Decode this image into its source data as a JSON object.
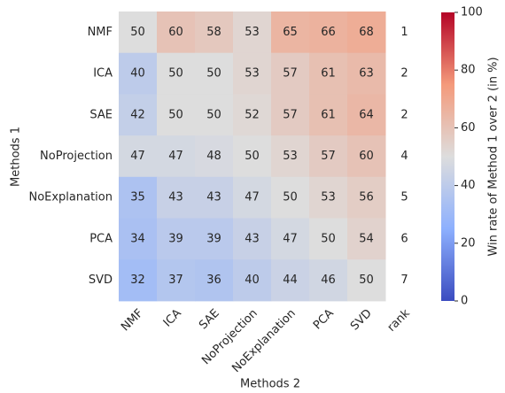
{
  "chart_data": {
    "type": "heatmap",
    "x_label": "Methods 2",
    "y_label": "Methods 1",
    "x_categories": [
      "NMF",
      "ICA",
      "SAE",
      "NoProjection",
      "NoExplanation",
      "PCA",
      "SVD",
      "rank"
    ],
    "y_categories": [
      "NMF",
      "ICA",
      "SAE",
      "NoProjection",
      "NoExplanation",
      "PCA",
      "SVD"
    ],
    "values": [
      [
        50,
        60,
        58,
        53,
        65,
        66,
        68
      ],
      [
        40,
        50,
        50,
        53,
        57,
        61,
        63
      ],
      [
        42,
        50,
        50,
        52,
        57,
        61,
        64
      ],
      [
        47,
        47,
        48,
        50,
        53,
        57,
        60
      ],
      [
        35,
        43,
        43,
        47,
        50,
        53,
        56
      ],
      [
        34,
        39,
        39,
        43,
        47,
        50,
        54
      ],
      [
        32,
        37,
        36,
        40,
        44,
        46,
        50
      ]
    ],
    "ranks": [
      1,
      2,
      2,
      4,
      5,
      6,
      7
    ],
    "colormap": "coolwarm",
    "colors": [
      "#3b4cc0",
      "#8db0fe",
      "#dddddd",
      "#f49a7b",
      "#b40426"
    ],
    "colorbar_label": "Win rate of Method 1 over 2 (in %)",
    "zlim": [
      0,
      100
    ],
    "zticks": [
      0,
      20,
      40,
      60,
      80,
      100
    ]
  }
}
